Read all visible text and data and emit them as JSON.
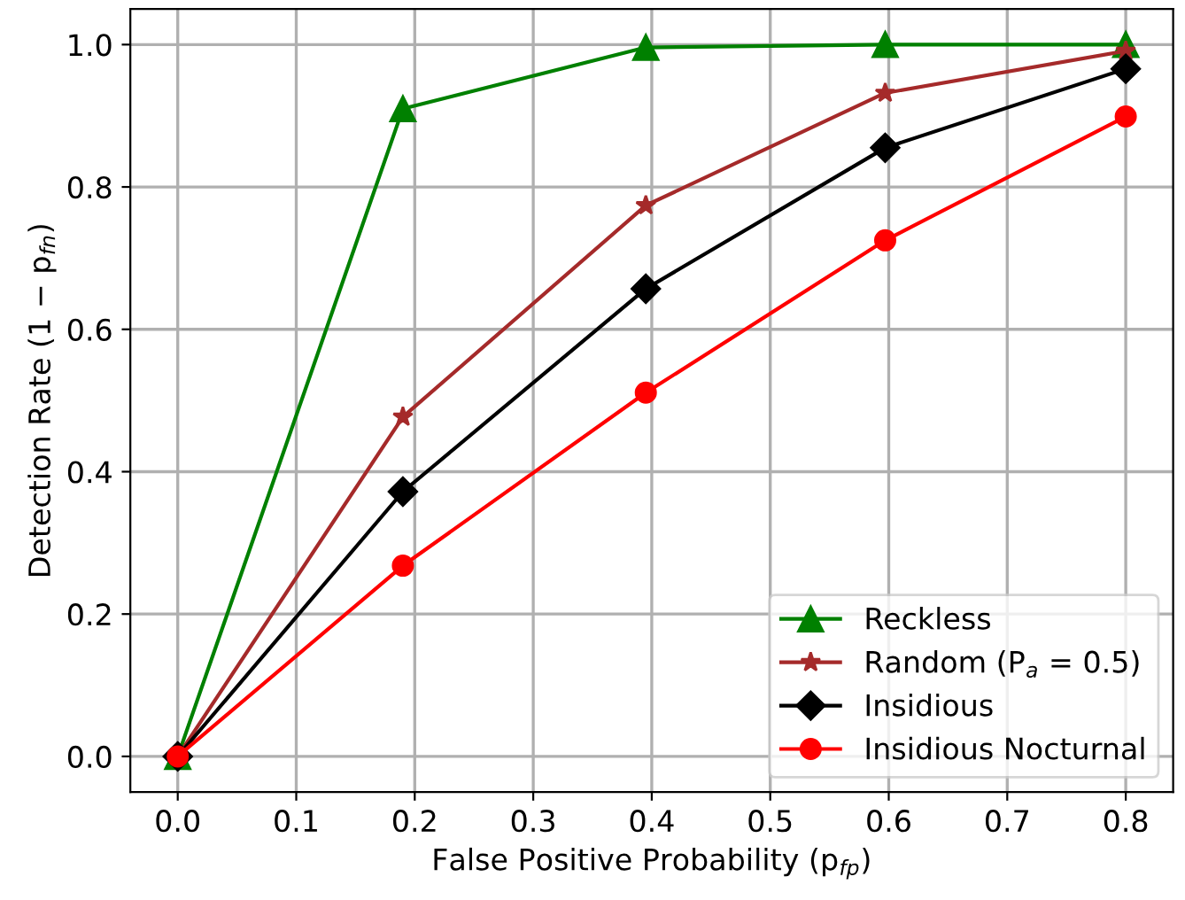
{
  "chart_data": {
    "type": "line",
    "xlabel": "False Positive Probability (p$_{fp}$)",
    "ylabel": "Detection Rate (1 − p$_{fn}$)",
    "xlim": [
      -0.04,
      0.84
    ],
    "ylim": [
      -0.05,
      1.05
    ],
    "xticks": [
      {
        "value": 0,
        "label": "0.0"
      },
      0.1,
      0.2,
      0.3,
      0.4,
      0.5,
      0.6,
      0.7,
      0.8
    ],
    "yticks": [
      {
        "value": 0,
        "label": "0.0"
      },
      0.2,
      0.4,
      0.6,
      0.8,
      {
        "value": 1,
        "label": "1.0"
      }
    ],
    "grid": true,
    "legend": "bottom right",
    "series": [
      {
        "name": "Reckless",
        "color": "#008000",
        "marker": "triangle",
        "x": [
          0,
          0.19,
          0.395,
          0.597,
          0.8
        ],
        "values": [
          0,
          0.91,
          0.996,
          1.0,
          1.0
        ]
      },
      {
        "name": "Random (P$_{a}$ = 0.5)",
        "color": "#a52a2a",
        "marker": "star",
        "x": [
          0,
          0.19,
          0.395,
          0.597,
          0.8
        ],
        "values": [
          0,
          0.477,
          0.774,
          0.932,
          0.991
        ]
      },
      {
        "name": "Insidious",
        "color": "#000000",
        "marker": "diamond",
        "x": [
          0,
          0.19,
          0.395,
          0.597,
          0.8
        ],
        "values": [
          0,
          0.372,
          0.657,
          0.855,
          0.966
        ]
      },
      {
        "name": "Insidious Nocturnal",
        "color": "#ff0000",
        "marker": "circle",
        "x": [
          0,
          0.19,
          0.395,
          0.597,
          0.8
        ],
        "values": [
          0,
          0.268,
          0.511,
          0.725,
          0.899
        ]
      }
    ]
  }
}
